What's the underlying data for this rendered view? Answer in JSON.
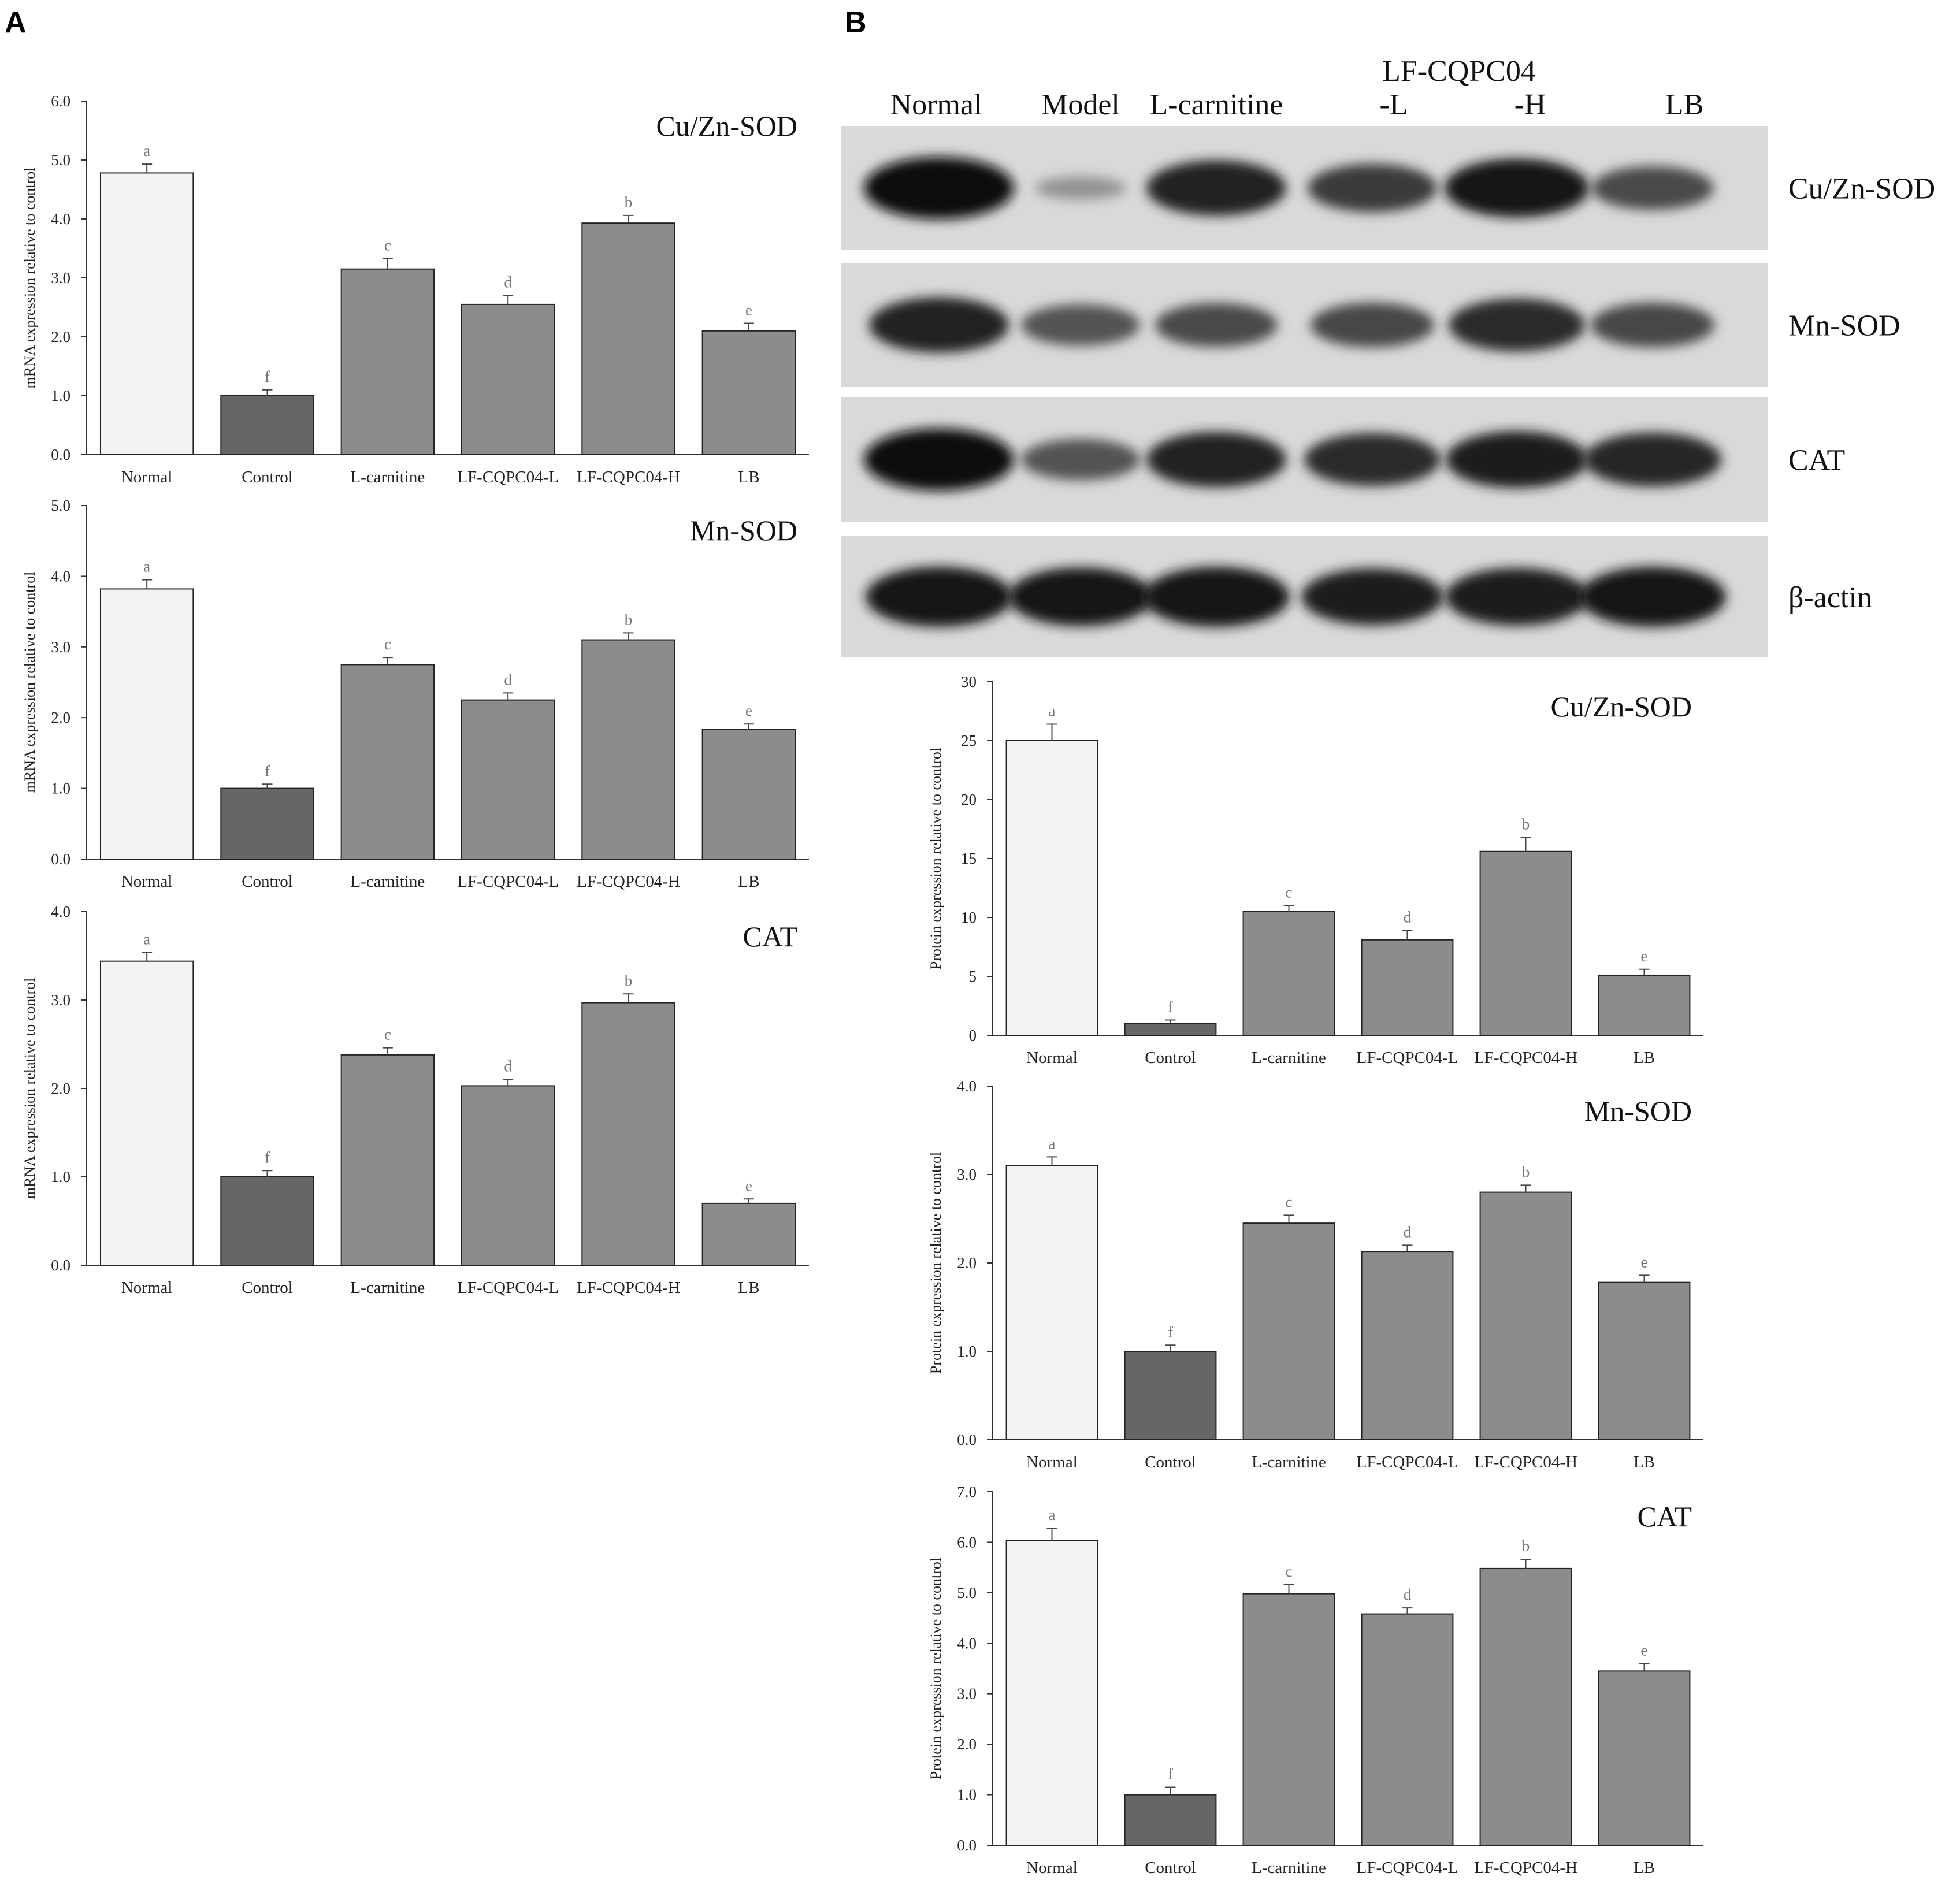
{
  "panels": {
    "A": "A",
    "B": "B"
  },
  "colors": {
    "normal_bar": "#f3f3f3",
    "control_bar": "#666666",
    "treatment_bar": "#8c8c8c",
    "bar_edge": "#222222",
    "sig_letter": "#777777",
    "blot_bg": "#d9d9d9"
  },
  "blot": {
    "lane_labels": [
      "Normal",
      "Model",
      "L-carnitine",
      "-L",
      "-H",
      "LB"
    ],
    "group_label": "LF-CQPC04",
    "proteins": [
      "Cu/Zn-SOD",
      "Mn-SOD",
      "CAT",
      "β-actin"
    ],
    "band_intensity": [
      [
        1.0,
        0.15,
        0.85,
        0.7,
        0.92,
        0.6
      ],
      [
        0.85,
        0.55,
        0.6,
        0.62,
        0.8,
        0.62
      ],
      [
        1.0,
        0.55,
        0.85,
        0.8,
        0.88,
        0.82
      ],
      [
        0.95,
        0.92,
        0.95,
        0.88,
        0.9,
        0.95
      ]
    ]
  },
  "chart_data": [
    {
      "type": "bar",
      "panel": "A",
      "title": "Cu/Zn-SOD",
      "ylabel": "mRNA expression relative to control",
      "categories": [
        "Normal",
        "Control",
        "L-carnitine",
        "LF-CQPC04-L",
        "LF-CQPC04-H",
        "LB"
      ],
      "values": [
        4.78,
        1.0,
        3.15,
        2.55,
        3.93,
        2.1
      ],
      "errors": [
        0.15,
        0.1,
        0.18,
        0.15,
        0.13,
        0.13
      ],
      "letters": [
        "a",
        "f",
        "c",
        "d",
        "b",
        "e"
      ],
      "ylim": [
        0,
        6
      ],
      "yticks": [
        "0.0",
        "1.0",
        "2.0",
        "3.0",
        "4.0",
        "5.0",
        "6.0"
      ]
    },
    {
      "type": "bar",
      "panel": "A",
      "title": "Mn-SOD",
      "ylabel": "mRNA expression relative to control",
      "categories": [
        "Normal",
        "Control",
        "L-carnitine",
        "LF-CQPC04-L",
        "LF-CQPC04-H",
        "LB"
      ],
      "values": [
        3.82,
        1.0,
        2.75,
        2.25,
        3.1,
        1.83
      ],
      "errors": [
        0.13,
        0.06,
        0.1,
        0.1,
        0.1,
        0.08
      ],
      "letters": [
        "a",
        "f",
        "c",
        "d",
        "b",
        "e"
      ],
      "ylim": [
        0,
        5
      ],
      "yticks": [
        "0.0",
        "1.0",
        "2.0",
        "3.0",
        "4.0",
        "5.0"
      ]
    },
    {
      "type": "bar",
      "panel": "A",
      "title": "CAT",
      "ylabel": "mRNA expression relative to control",
      "categories": [
        "Normal",
        "Control",
        "L-carnitine",
        "LF-CQPC04-L",
        "LF-CQPC04-H",
        "LB"
      ],
      "values": [
        3.44,
        1.0,
        2.38,
        2.03,
        2.97,
        0.7
      ],
      "errors": [
        0.1,
        0.07,
        0.08,
        0.07,
        0.1,
        0.05
      ],
      "letters": [
        "a",
        "f",
        "c",
        "d",
        "b",
        "e"
      ],
      "ylim": [
        0,
        4
      ],
      "yticks": [
        "0.0",
        "1.0",
        "2.0",
        "3.0",
        "4.0"
      ]
    },
    {
      "type": "bar",
      "panel": "B",
      "title": "Cu/Zn-SOD",
      "ylabel": "Protein expression relative to control",
      "categories": [
        "Normal",
        "Control",
        "L-carnitine",
        "LF-CQPC04-L",
        "LF-CQPC04-H",
        "LB"
      ],
      "values": [
        25.0,
        1.0,
        10.5,
        8.1,
        15.6,
        5.1
      ],
      "errors": [
        1.4,
        0.3,
        0.5,
        0.8,
        1.2,
        0.5
      ],
      "letters": [
        "a",
        "f",
        "c",
        "d",
        "b",
        "e"
      ],
      "ylim": [
        0,
        30
      ],
      "yticks": [
        "0",
        "5",
        "10",
        "15",
        "20",
        "25",
        "30"
      ]
    },
    {
      "type": "bar",
      "panel": "B",
      "title": "Mn-SOD",
      "ylabel": "Protein expression relative to control",
      "categories": [
        "Normal",
        "Control",
        "L-carnitine",
        "LF-CQPC04-L",
        "LF-CQPC04-H",
        "LB"
      ],
      "values": [
        3.1,
        1.0,
        2.45,
        2.13,
        2.8,
        1.78
      ],
      "errors": [
        0.1,
        0.07,
        0.09,
        0.07,
        0.08,
        0.08
      ],
      "letters": [
        "a",
        "f",
        "c",
        "d",
        "b",
        "e"
      ],
      "ylim": [
        0,
        4
      ],
      "yticks": [
        "0.0",
        "1.0",
        "2.0",
        "3.0",
        "4.0"
      ]
    },
    {
      "type": "bar",
      "panel": "B",
      "title": "CAT",
      "ylabel": "Protein expression relative to control",
      "categories": [
        "Normal",
        "Control",
        "L-carnitine",
        "LF-CQPC04-L",
        "LF-CQPC04-H",
        "LB"
      ],
      "values": [
        6.03,
        1.0,
        4.98,
        4.58,
        5.48,
        3.45
      ],
      "errors": [
        0.25,
        0.15,
        0.18,
        0.12,
        0.18,
        0.15
      ],
      "letters": [
        "a",
        "f",
        "c",
        "d",
        "b",
        "e"
      ],
      "ylim": [
        0,
        7
      ],
      "yticks": [
        "0.0",
        "1.0",
        "2.0",
        "3.0",
        "4.0",
        "5.0",
        "6.0",
        "7.0"
      ]
    }
  ]
}
